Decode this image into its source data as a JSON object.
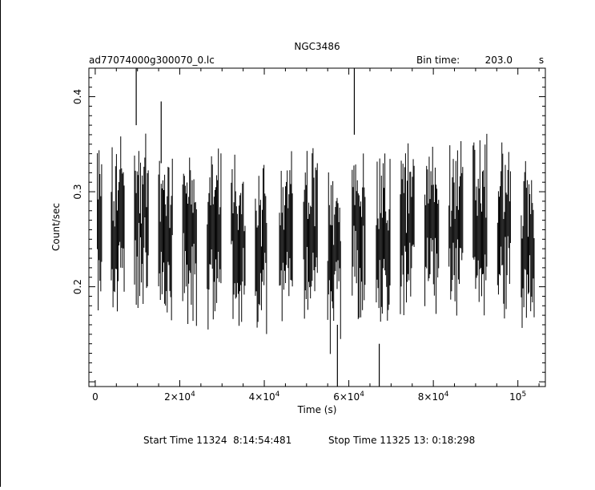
{
  "chart_data": {
    "type": "line",
    "title": "NGC3486",
    "subtitle_left": "ad77074000g300070_0.lc",
    "bin_time": {
      "label": "Bin time:",
      "value": "203.0",
      "unit": "s"
    },
    "xlabel": "Time (s)",
    "ylabel": "Count/sec",
    "xlim": [
      -1500,
      106500
    ],
    "ylim": [
      0.095,
      0.43
    ],
    "x_ticks": [
      {
        "value": 0,
        "base": "0",
        "exp": ""
      },
      {
        "value": 20000,
        "base": "2×10",
        "exp": "4"
      },
      {
        "value": 40000,
        "base": "4×10",
        "exp": "4"
      },
      {
        "value": 60000,
        "base": "6×10",
        "exp": "4"
      },
      {
        "value": 80000,
        "base": "8×10",
        "exp": "4"
      },
      {
        "value": 100000,
        "base": "10",
        "exp": "5"
      }
    ],
    "y_ticks": [
      {
        "value": 0.2,
        "label": "0.2"
      },
      {
        "value": 0.3,
        "label": "0.3"
      },
      {
        "value": 0.4,
        "label": "0.4"
      }
    ],
    "segments": [
      {
        "start": 500,
        "end": 1600,
        "mean": 0.255
      },
      {
        "start": 3800,
        "end": 6900,
        "mean": 0.258
      },
      {
        "start": 9300,
        "end": 12600,
        "mean": 0.27
      },
      {
        "start": 15000,
        "end": 18300,
        "mean": 0.262
      },
      {
        "start": 20700,
        "end": 24000,
        "mean": 0.255
      },
      {
        "start": 26500,
        "end": 29800,
        "mean": 0.258
      },
      {
        "start": 32200,
        "end": 35500,
        "mean": 0.255
      },
      {
        "start": 37900,
        "end": 40600,
        "mean": 0.235
      },
      {
        "start": 43600,
        "end": 46800,
        "mean": 0.25
      },
      {
        "start": 49300,
        "end": 52600,
        "mean": 0.26
      },
      {
        "start": 55000,
        "end": 58200,
        "mean": 0.225
      },
      {
        "start": 60800,
        "end": 64000,
        "mean": 0.265
      },
      {
        "start": 66500,
        "end": 69800,
        "mean": 0.245
      },
      {
        "start": 72200,
        "end": 75500,
        "mean": 0.255
      },
      {
        "start": 78000,
        "end": 81300,
        "mean": 0.265
      },
      {
        "start": 83700,
        "end": 87000,
        "mean": 0.262
      },
      {
        "start": 89400,
        "end": 92700,
        "mean": 0.262
      },
      {
        "start": 95200,
        "end": 98400,
        "mean": 0.258
      },
      {
        "start": 100800,
        "end": 104000,
        "mean": 0.238
      }
    ],
    "spikes": [
      {
        "x": 9700,
        "low": 0.37,
        "high": 0.43
      },
      {
        "x": 15600,
        "low": 0.33,
        "high": 0.395
      },
      {
        "x": 61300,
        "low": 0.36,
        "high": 0.43
      },
      {
        "x": 57300,
        "low": 0.095,
        "high": 0.16
      },
      {
        "x": 67200,
        "low": 0.095,
        "high": 0.14
      }
    ],
    "grid": false,
    "legend": "none"
  },
  "footer": {
    "start_time": "Start Time 11324  8:14:54:481",
    "stop_time": "Stop Time 11325 13: 0:18:298"
  }
}
